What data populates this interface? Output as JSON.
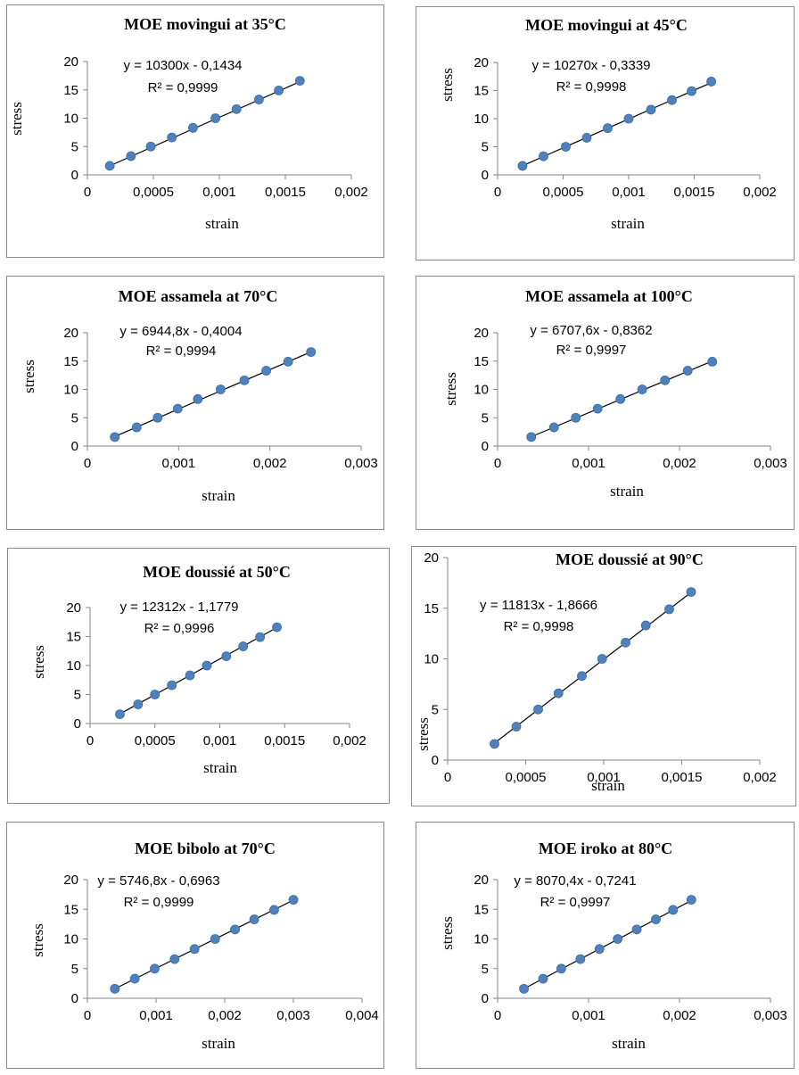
{
  "chart_data": [
    {
      "type": "scatter",
      "title": "MOE movingui at 35°C",
      "xlabel": "strain",
      "ylabel": "stress",
      "xlim": [
        0,
        0.002
      ],
      "ylim": [
        0,
        20
      ],
      "x_ticks": [
        0,
        0.0005,
        0.001,
        0.0015,
        0.002
      ],
      "x_tick_labels": [
        "0",
        "0,0005",
        "0,001",
        "0,0015",
        "0,002"
      ],
      "y_ticks": [
        0,
        5,
        10,
        15,
        20
      ],
      "y_tick_labels": [
        "0",
        "5",
        "10",
        "15",
        "20"
      ],
      "equation": "y = 10300x - 0,1434",
      "r2": "R² = 0,9999",
      "trend": {
        "slope": 10300,
        "intercept": -0.1434
      },
      "series": [
        {
          "x": [
            0.00017,
            0.00033,
            0.00048,
            0.00064,
            0.0008,
            0.00097,
            0.00113,
            0.0013,
            0.00145,
            0.00161
          ],
          "y": [
            1.6,
            3.3,
            5.0,
            6.6,
            8.3,
            10.0,
            11.6,
            13.3,
            14.9,
            16.6
          ]
        }
      ]
    },
    {
      "type": "scatter",
      "title": "MOE movingui at 45°C",
      "xlabel": "strain",
      "ylabel": "stress",
      "xlim": [
        0,
        0.002
      ],
      "ylim": [
        0,
        20
      ],
      "x_ticks": [
        0,
        0.0005,
        0.001,
        0.0015,
        0.002
      ],
      "x_tick_labels": [
        "0",
        "0,0005",
        "0,001",
        "0,0015",
        "0,002"
      ],
      "y_ticks": [
        0,
        5,
        10,
        15,
        20
      ],
      "y_tick_labels": [
        "0",
        "5",
        "10",
        "15",
        "20"
      ],
      "equation": "y = 10270x - 0,3339",
      "r2": "R² = 0,9998",
      "trend": {
        "slope": 10270,
        "intercept": -0.3339
      },
      "series": [
        {
          "x": [
            0.00019,
            0.00035,
            0.00052,
            0.00068,
            0.00084,
            0.001,
            0.00117,
            0.00133,
            0.00148,
            0.00163
          ],
          "y": [
            1.6,
            3.3,
            5.0,
            6.6,
            8.3,
            10.0,
            11.6,
            13.3,
            14.9,
            16.6
          ]
        }
      ]
    },
    {
      "type": "scatter",
      "title": "MOE assamela at 70°C",
      "xlabel": "strain",
      "ylabel": "stress",
      "xlim": [
        0,
        0.003
      ],
      "ylim": [
        0,
        20
      ],
      "x_ticks": [
        0,
        0.001,
        0.002,
        0.003
      ],
      "x_tick_labels": [
        "0",
        "0,001",
        "0,002",
        "0,003"
      ],
      "y_ticks": [
        0,
        5,
        10,
        15,
        20
      ],
      "y_tick_labels": [
        "0",
        "5",
        "10",
        "15",
        "20"
      ],
      "equation": "y = 6944,8x - 0,4004",
      "r2": "R² = 0,9994",
      "trend": {
        "slope": 6944.8,
        "intercept": -0.4004
      },
      "series": [
        {
          "x": [
            0.0003,
            0.00054,
            0.00077,
            0.00099,
            0.00121,
            0.00146,
            0.00172,
            0.00196,
            0.0022,
            0.00245
          ],
          "y": [
            1.6,
            3.3,
            5.0,
            6.6,
            8.3,
            10.0,
            11.6,
            13.3,
            14.9,
            16.6
          ]
        }
      ]
    },
    {
      "type": "scatter",
      "title": "MOE assamela at 100°C",
      "xlabel": "strain",
      "ylabel": "stress",
      "xlim": [
        0,
        0.003
      ],
      "ylim": [
        0,
        20
      ],
      "x_ticks": [
        0,
        0.001,
        0.002,
        0.003
      ],
      "x_tick_labels": [
        "0",
        "0,001",
        "0,002",
        "0,003"
      ],
      "y_ticks": [
        0,
        5,
        10,
        15,
        20
      ],
      "y_tick_labels": [
        "0",
        "5",
        "10",
        "15",
        "20"
      ],
      "equation": "y = 6707,6x - 0,8362",
      "r2": "R² = 0,9997",
      "trend": {
        "slope": 6707.6,
        "intercept": -0.8362
      },
      "series": [
        {
          "x": [
            0.00037,
            0.00062,
            0.00086,
            0.0011,
            0.00135,
            0.00159,
            0.00184,
            0.00209,
            0.00236
          ],
          "y": [
            1.6,
            3.3,
            5.0,
            6.6,
            8.3,
            10.0,
            11.6,
            13.3,
            14.9
          ]
        }
      ]
    },
    {
      "type": "scatter",
      "title": "MOE doussié at 50°C",
      "xlabel": "strain",
      "ylabel": "stress",
      "xlim": [
        0,
        0.002
      ],
      "ylim": [
        0,
        20
      ],
      "x_ticks": [
        0,
        0.0005,
        0.001,
        0.0015,
        0.002
      ],
      "x_tick_labels": [
        "0",
        "0,0005",
        "0,001",
        "0,0015",
        "0,002"
      ],
      "y_ticks": [
        0,
        5,
        10,
        15,
        20
      ],
      "y_tick_labels": [
        "0",
        "5",
        "10",
        "15",
        "20"
      ],
      "equation": "y = 12312x - 1,1779",
      "r2": "R² = 0,9996",
      "trend": {
        "slope": 12312,
        "intercept": -1.1779
      },
      "series": [
        {
          "x": [
            0.00023,
            0.00037,
            0.0005,
            0.00063,
            0.00077,
            0.0009,
            0.00105,
            0.00118,
            0.00131,
            0.00144
          ],
          "y": [
            1.6,
            3.3,
            5.0,
            6.6,
            8.3,
            10.0,
            11.6,
            13.3,
            14.9,
            16.6
          ]
        }
      ]
    },
    {
      "type": "scatter",
      "title": "MOE doussié at 90°C",
      "xlabel": "strain",
      "ylabel": "stress",
      "xlim": [
        0,
        0.002
      ],
      "ylim": [
        0,
        20
      ],
      "x_ticks": [
        0,
        0.0005,
        0.001,
        0.0015,
        0.002
      ],
      "x_tick_labels": [
        "0",
        "0,0005",
        "0,001",
        "0,0015",
        "0,002"
      ],
      "y_ticks": [
        0,
        5,
        10,
        15,
        20
      ],
      "y_tick_labels": [
        "0",
        "5",
        "10",
        "15",
        "20"
      ],
      "equation": "y = 11813x - 1,8666",
      "r2": "R² = 0,9998",
      "trend": {
        "slope": 11813,
        "intercept": -1.8666
      },
      "series": [
        {
          "x": [
            0.0003,
            0.00044,
            0.00058,
            0.00071,
            0.00086,
            0.00099,
            0.00114,
            0.00127,
            0.00142,
            0.00156
          ],
          "y": [
            1.6,
            3.3,
            5.0,
            6.6,
            8.3,
            10.0,
            11.6,
            13.3,
            14.9,
            16.6
          ]
        }
      ]
    },
    {
      "type": "scatter",
      "title": "MOE bibolo at 70°C",
      "xlabel": "strain",
      "ylabel": "stress",
      "xlim": [
        0,
        0.004
      ],
      "ylim": [
        0,
        20
      ],
      "x_ticks": [
        0,
        0.001,
        0.002,
        0.003,
        0.004
      ],
      "x_tick_labels": [
        "0",
        "0,001",
        "0,002",
        "0,003",
        "0,004"
      ],
      "y_ticks": [
        0,
        5,
        10,
        15,
        20
      ],
      "y_tick_labels": [
        "0",
        "5",
        "10",
        "15",
        "20"
      ],
      "equation": "y = 5746,8x - 0,6963",
      "r2": "R² = 0,9999",
      "trend": {
        "slope": 5746.8,
        "intercept": -0.6963
      },
      "series": [
        {
          "x": [
            0.0004,
            0.00069,
            0.00098,
            0.00127,
            0.00156,
            0.00186,
            0.00215,
            0.00243,
            0.00272,
            0.003
          ],
          "y": [
            1.6,
            3.3,
            5.0,
            6.6,
            8.3,
            10.0,
            11.6,
            13.3,
            14.9,
            16.6
          ]
        }
      ]
    },
    {
      "type": "scatter",
      "title": "MOE iroko at 80°C",
      "xlabel": "strain",
      "ylabel": "stress",
      "xlim": [
        0,
        0.003
      ],
      "ylim": [
        0,
        20
      ],
      "x_ticks": [
        0,
        0.001,
        0.002,
        0.003
      ],
      "x_tick_labels": [
        "0",
        "0,001",
        "0,002",
        "0,003"
      ],
      "y_ticks": [
        0,
        5,
        10,
        15,
        20
      ],
      "y_tick_labels": [
        "0",
        "5",
        "10",
        "15",
        "20"
      ],
      "equation": "y = 8070,4x - 0,7241",
      "r2": "R² = 0,9997",
      "trend": {
        "slope": 8070.4,
        "intercept": -0.7241
      },
      "series": [
        {
          "x": [
            0.00029,
            0.0005,
            0.0007,
            0.00091,
            0.00112,
            0.00132,
            0.00153,
            0.00174,
            0.00193,
            0.00213
          ],
          "y": [
            1.6,
            3.3,
            5.0,
            6.6,
            8.3,
            10.0,
            11.6,
            13.3,
            14.9,
            16.6
          ]
        }
      ]
    }
  ]
}
